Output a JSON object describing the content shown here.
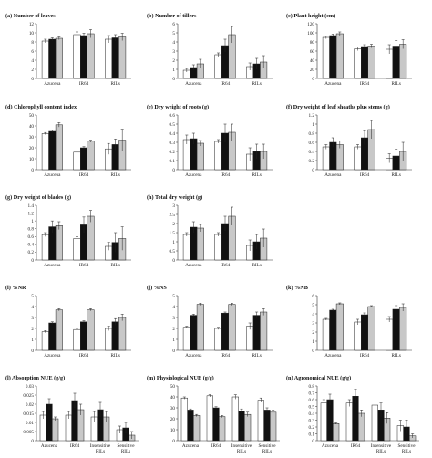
{
  "figure": {
    "series_colors": [
      "#ffffff",
      "#111111",
      "#c8c8c8"
    ]
  },
  "chart_data": [
    {
      "panel": "a",
      "type": "bar",
      "title": "(a) Number of leaves",
      "categories": [
        "Azucena",
        "IR64",
        "RILs"
      ],
      "ylim": [
        0,
        12
      ],
      "yticks": [
        0,
        2,
        4,
        6,
        8,
        10,
        12
      ],
      "series": [
        {
          "values": [
            8.2,
            9.6,
            8.6
          ],
          "errors": [
            0.4,
            0.6,
            0.8
          ]
        },
        {
          "values": [
            8.6,
            9.4,
            8.9
          ],
          "errors": [
            0.3,
            0.5,
            0.7
          ]
        },
        {
          "values": [
            8.8,
            9.8,
            9.1
          ],
          "errors": [
            0.3,
            0.9,
            0.8
          ]
        }
      ]
    },
    {
      "panel": "b",
      "type": "bar",
      "title": "(b) Number of tillers",
      "categories": [
        "Azucena",
        "IR64",
        "RILs"
      ],
      "ylim": [
        0,
        6
      ],
      "yticks": [
        0,
        1,
        2,
        3,
        4,
        5,
        6
      ],
      "series": [
        {
          "values": [
            0.9,
            2.6,
            1.3
          ],
          "errors": [
            0.2,
            0.2,
            0.4
          ]
        },
        {
          "values": [
            1.2,
            3.6,
            1.6
          ],
          "errors": [
            0.3,
            0.7,
            0.6
          ]
        },
        {
          "values": [
            1.6,
            4.8,
            1.8
          ],
          "errors": [
            0.5,
            0.9,
            0.7
          ]
        }
      ]
    },
    {
      "panel": "c",
      "type": "bar",
      "title": "(c) Plant height (cm)",
      "categories": [
        "Azucena",
        "IR64",
        "RILs"
      ],
      "ylim": [
        0,
        120
      ],
      "yticks": [
        0,
        20,
        40,
        60,
        80,
        100,
        120
      ],
      "series": [
        {
          "values": [
            90,
            65,
            64
          ],
          "errors": [
            3,
            4,
            10
          ]
        },
        {
          "values": [
            94,
            70,
            71
          ],
          "errors": [
            3,
            4,
            12
          ]
        },
        {
          "values": [
            98,
            71,
            75
          ],
          "errors": [
            4,
            4,
            10
          ]
        }
      ]
    },
    {
      "panel": "d",
      "type": "bar",
      "title": "(d) Chlorophyll content index",
      "categories": [
        "Azucena",
        "IR64",
        "RILs"
      ],
      "ylim": [
        0,
        50
      ],
      "yticks": [
        0,
        10,
        20,
        30,
        40,
        50
      ],
      "series": [
        {
          "values": [
            33,
            16,
            19
          ],
          "errors": [
            1,
            1,
            5
          ]
        },
        {
          "values": [
            35,
            20,
            23
          ],
          "errors": [
            1,
            1,
            5
          ]
        },
        {
          "values": [
            41,
            26,
            27
          ],
          "errors": [
            2,
            1,
            10
          ]
        }
      ]
    },
    {
      "panel": "e",
      "type": "bar",
      "title": "(e) Dry weight of roots (g)",
      "categories": [
        "Azucena",
        "IR64",
        "RILs"
      ],
      "ylim": [
        0,
        0.6
      ],
      "yticks": [
        0,
        0.1,
        0.2,
        0.3,
        0.4,
        0.5,
        0.6
      ],
      "series": [
        {
          "values": [
            0.33,
            0.31,
            0.17
          ],
          "errors": [
            0.05,
            0.02,
            0.07
          ]
        },
        {
          "values": [
            0.34,
            0.4,
            0.2
          ],
          "errors": [
            0.06,
            0.1,
            0.08
          ]
        },
        {
          "values": [
            0.29,
            0.41,
            0.2
          ],
          "errors": [
            0.03,
            0.09,
            0.08
          ]
        }
      ]
    },
    {
      "panel": "f",
      "type": "bar",
      "title": "(f) Dry weight of leaf sheaths plus stems (g)",
      "categories": [
        "Azucena",
        "IR64",
        "RILs"
      ],
      "ylim": [
        0,
        1.2
      ],
      "yticks": [
        0,
        0.2,
        0.4,
        0.6,
        0.8,
        1,
        1.2
      ],
      "series": [
        {
          "values": [
            0.5,
            0.5,
            0.25
          ],
          "errors": [
            0.05,
            0.05,
            0.1
          ]
        },
        {
          "values": [
            0.6,
            0.7,
            0.3
          ],
          "errors": [
            0.1,
            0.15,
            0.15
          ]
        },
        {
          "values": [
            0.55,
            0.88,
            0.4
          ],
          "errors": [
            0.08,
            0.2,
            0.2
          ]
        }
      ]
    },
    {
      "panel": "g",
      "type": "bar",
      "title": "(g) Dry weight of blades (g)",
      "categories": [
        "Azucena",
        "IR64",
        "RILs"
      ],
      "ylim": [
        0,
        1.4
      ],
      "yticks": [
        0,
        0.2,
        0.4,
        0.6,
        0.8,
        1,
        1.2,
        1.4
      ],
      "series": [
        {
          "values": [
            0.65,
            0.55,
            0.35
          ],
          "errors": [
            0.05,
            0.05,
            0.1
          ]
        },
        {
          "values": [
            0.85,
            0.9,
            0.45
          ],
          "errors": [
            0.15,
            0.2,
            0.25
          ]
        },
        {
          "values": [
            0.88,
            1.12,
            0.55
          ],
          "errors": [
            0.1,
            0.15,
            0.3
          ]
        }
      ]
    },
    {
      "panel": "h",
      "type": "bar",
      "title": "(h) Total dry weight (g)",
      "categories": [
        "Azucena",
        "IR64",
        "RILs"
      ],
      "ylim": [
        0,
        3
      ],
      "yticks": [
        0,
        0.5,
        1,
        1.5,
        2,
        2.5,
        3
      ],
      "series": [
        {
          "values": [
            1.4,
            1.4,
            0.8
          ],
          "errors": [
            0.1,
            0.1,
            0.3
          ]
        },
        {
          "values": [
            1.8,
            2.0,
            1.0
          ],
          "errors": [
            0.3,
            0.4,
            0.4
          ]
        },
        {
          "values": [
            1.75,
            2.4,
            1.2
          ],
          "errors": [
            0.2,
            0.5,
            0.5
          ]
        }
      ]
    },
    {
      "panel": "i",
      "type": "bar",
      "title": "(i) %NR",
      "categories": [
        "Azucena",
        "IR64",
        "RILs"
      ],
      "ylim": [
        0,
        5
      ],
      "yticks": [
        0,
        1,
        2,
        3,
        4,
        5
      ],
      "series": [
        {
          "values": [
            1.7,
            1.9,
            2.0
          ],
          "errors": [
            0.1,
            0.1,
            0.2
          ]
        },
        {
          "values": [
            2.5,
            2.6,
            2.6
          ],
          "errors": [
            0.1,
            0.1,
            0.3
          ]
        },
        {
          "values": [
            3.7,
            3.7,
            3.0
          ],
          "errors": [
            0.1,
            0.1,
            0.3
          ]
        }
      ]
    },
    {
      "panel": "j",
      "type": "bar",
      "title": "(j) %NS",
      "categories": [
        "Azucena",
        "IR64",
        "RILs"
      ],
      "ylim": [
        0,
        5
      ],
      "yticks": [
        0,
        1,
        2,
        3,
        4,
        5
      ],
      "series": [
        {
          "values": [
            2.1,
            2.0,
            2.2
          ],
          "errors": [
            0.1,
            0.1,
            0.3
          ]
        },
        {
          "values": [
            3.2,
            3.4,
            3.2
          ],
          "errors": [
            0.1,
            0.1,
            0.3
          ]
        },
        {
          "values": [
            4.2,
            4.2,
            3.5
          ],
          "errors": [
            0.1,
            0.1,
            0.3
          ]
        }
      ]
    },
    {
      "panel": "k",
      "type": "bar",
      "title": "(k) %NB",
      "categories": [
        "Azucena",
        "IR64",
        "RILs"
      ],
      "ylim": [
        0,
        6
      ],
      "yticks": [
        0,
        1,
        2,
        3,
        4,
        5,
        6
      ],
      "series": [
        {
          "values": [
            3.4,
            3.1,
            3.4
          ],
          "errors": [
            0.1,
            0.3,
            0.3
          ]
        },
        {
          "values": [
            4.4,
            3.9,
            4.5
          ],
          "errors": [
            0.1,
            0.2,
            0.4
          ]
        },
        {
          "values": [
            5.1,
            4.8,
            4.7
          ],
          "errors": [
            0.1,
            0.1,
            0.4
          ]
        }
      ]
    },
    {
      "panel": "l",
      "type": "bar",
      "title": "(l) Absorption NUE (g/g)",
      "categories": [
        "Azucena",
        "IR64",
        "Insensitive RILs",
        "Sensitive RILs"
      ],
      "ylim": [
        0,
        0.03
      ],
      "yticks": [
        0,
        0.005,
        0.01,
        0.015,
        0.02,
        0.025,
        0.03
      ],
      "series": [
        {
          "values": [
            0.014,
            0.014,
            0.013,
            0.006
          ],
          "errors": [
            0.002,
            0.002,
            0.003,
            0.002
          ]
        },
        {
          "values": [
            0.02,
            0.022,
            0.017,
            0.007
          ],
          "errors": [
            0.003,
            0.004,
            0.004,
            0.003
          ]
        },
        {
          "values": [
            0.012,
            0.017,
            0.013,
            0.003
          ],
          "errors": [
            0.001,
            0.003,
            0.003,
            0.002
          ]
        }
      ]
    },
    {
      "panel": "m",
      "type": "bar",
      "title": "(m) Physiological NUE (g/g)",
      "categories": [
        "Azucena",
        "IR64",
        "Insensitive RILs",
        "Sensitive RILs"
      ],
      "ylim": [
        0,
        50
      ],
      "yticks": [
        0,
        10,
        20,
        30,
        40,
        50
      ],
      "series": [
        {
          "values": [
            39,
            41,
            40,
            37
          ],
          "errors": [
            1,
            1,
            2,
            2
          ]
        },
        {
          "values": [
            28,
            30,
            27,
            28
          ],
          "errors": [
            1,
            1,
            2,
            2
          ]
        },
        {
          "values": [
            23,
            22,
            24,
            26
          ],
          "errors": [
            1,
            1,
            2,
            2
          ]
        }
      ]
    },
    {
      "panel": "n",
      "type": "bar",
      "title": "(n) Agronomical NUE (g/g)",
      "categories": [
        "Azucena",
        "IR64",
        "Insensitive RILs",
        "Sensitive RILs"
      ],
      "ylim": [
        0,
        0.8
      ],
      "yticks": [
        0,
        0.1,
        0.2,
        0.3,
        0.4,
        0.5,
        0.6,
        0.7,
        0.8
      ],
      "series": [
        {
          "values": [
            0.55,
            0.55,
            0.52,
            0.22
          ],
          "errors": [
            0.05,
            0.05,
            0.06,
            0.08
          ]
        },
        {
          "values": [
            0.6,
            0.65,
            0.45,
            0.2
          ],
          "errors": [
            0.08,
            0.1,
            0.1,
            0.1
          ]
        },
        {
          "values": [
            0.25,
            0.4,
            0.33,
            0.07
          ],
          "errors": [
            0.01,
            0.05,
            0.08,
            0.03
          ]
        }
      ]
    }
  ]
}
